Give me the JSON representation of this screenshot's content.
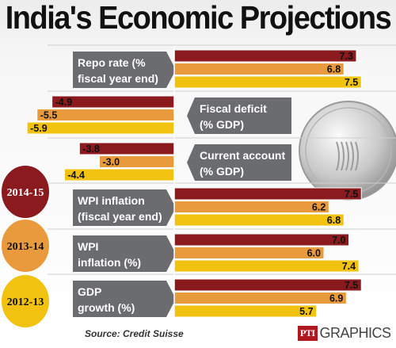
{
  "title": "India's Economic Projections",
  "source": "Source: Credit Suisse",
  "credit": {
    "logo": "PTI",
    "label": "GRAPHICS"
  },
  "colors": {
    "2014-15": "#8b1a1f",
    "2013-14": "#e89a3c",
    "2012-13": "#f1c20f",
    "label_box": "#6a6c70"
  },
  "chart_data": {
    "type": "bar",
    "title": "India's Economic Projections",
    "orientation": "horizontal",
    "legend": [
      "2014-15",
      "2013-14",
      "2012-13"
    ],
    "categories": [
      "Repo rate (% fiscal year end)",
      "Fiscal deficit (% GDP)",
      "Current account (% GDP)",
      "WPI inflation (fiscal year end)",
      "WPI inflation (%)",
      "GDP growth (%)"
    ],
    "category_lines": [
      [
        "Repo rate (%",
        "fiscal year end)"
      ],
      [
        "Fiscal deficit",
        "(% GDP)"
      ],
      [
        "Current account",
        "(% GDP)"
      ],
      [
        "WPI inflation",
        "(fiscal year end)"
      ],
      [
        "WPI",
        "inflation (%)"
      ],
      [
        "GDP",
        "growth (%)"
      ]
    ],
    "series": [
      {
        "name": "2014-15",
        "values": [
          7.3,
          -4.9,
          -3.8,
          7.5,
          7.0,
          7.5
        ]
      },
      {
        "name": "2013-14",
        "values": [
          6.8,
          -5.5,
          -3.0,
          6.2,
          6.0,
          6.9
        ]
      },
      {
        "name": "2012-13",
        "values": [
          7.5,
          -5.9,
          -4.4,
          6.8,
          7.4,
          5.7
        ]
      }
    ],
    "value_labels": [
      [
        "7.3",
        "6.8",
        "7.5"
      ],
      [
        "-4.9",
        "-5.5",
        "-5.9"
      ],
      [
        "-3.8",
        "-3.0",
        "-4.4"
      ],
      [
        "7.5",
        "6.2",
        "6.8"
      ],
      [
        "7.0",
        "6.0",
        "7.4"
      ],
      [
        "7.5",
        "6.9",
        "5.7"
      ]
    ],
    "grid": false
  }
}
